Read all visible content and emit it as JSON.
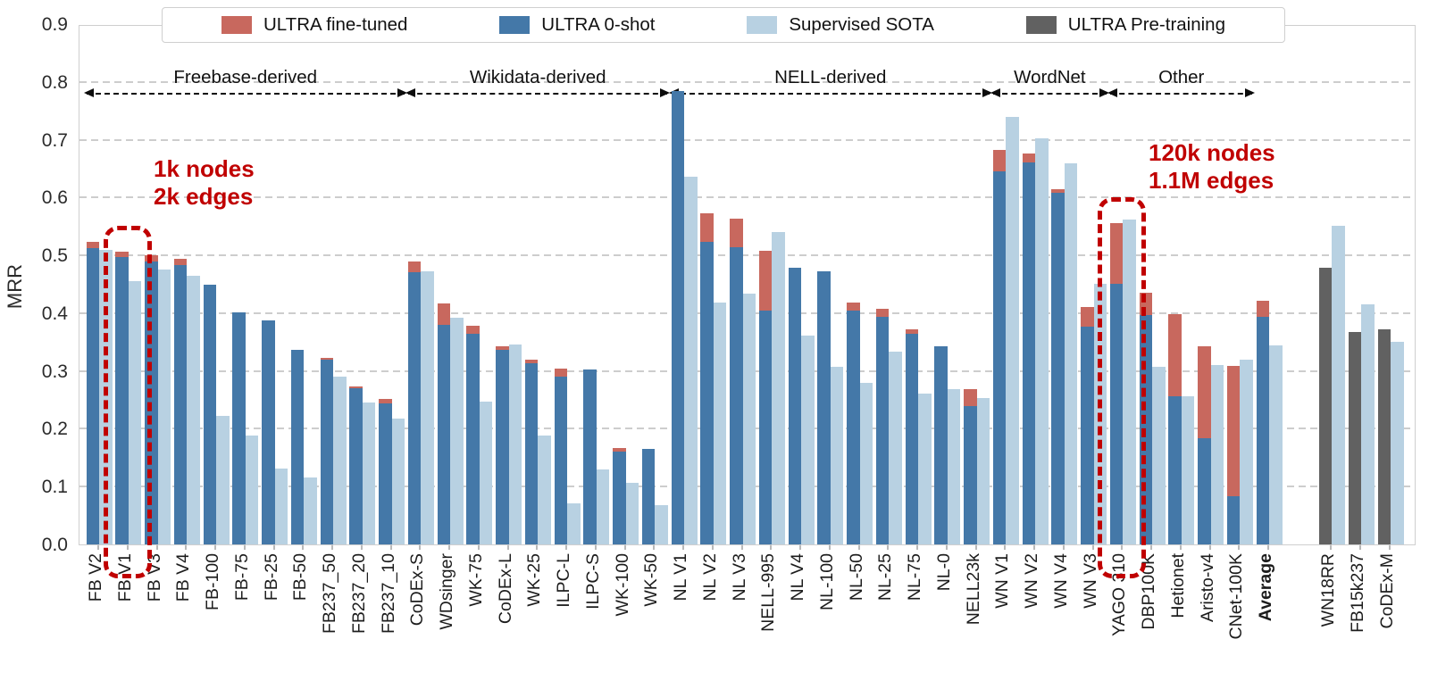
{
  "chart_data": {
    "type": "bar",
    "title": "",
    "ylabel": "MRR",
    "ylim": [
      0,
      0.9
    ],
    "yticks": [
      0.0,
      0.1,
      0.2,
      0.3,
      0.4,
      0.5,
      0.6,
      0.7,
      0.8,
      0.9
    ],
    "grid": "horizontal-dashed",
    "legend_position": "top-center",
    "legend": [
      {
        "label": "ULTRA fine-tuned",
        "color": "#c8685e"
      },
      {
        "label": "ULTRA 0-shot",
        "color": "#4478a8"
      },
      {
        "label": "Supervised SOTA",
        "color": "#b8d1e2"
      },
      {
        "label": "ULTRA Pre-training",
        "color": "#616161"
      }
    ],
    "groups": [
      {
        "label": "Freebase-derived",
        "start": 0,
        "end": 10
      },
      {
        "label": "Wikidata-derived",
        "start": 11,
        "end": 19
      },
      {
        "label": "NELL-derived",
        "start": 20,
        "end": 30
      },
      {
        "label": "WordNet",
        "start": 31,
        "end": 34
      },
      {
        "label": "Other",
        "start": 35,
        "end": 39
      }
    ],
    "datasets": [
      {
        "label": "FB V2",
        "zero_shot": 0.512,
        "fine_tuned": 0.523,
        "sota": 0.509
      },
      {
        "label": "FB V1",
        "zero_shot": 0.497,
        "fine_tuned": 0.506,
        "sota": 0.456
      },
      {
        "label": "FB V3",
        "zero_shot": 0.49,
        "fine_tuned": 0.5,
        "sota": 0.475
      },
      {
        "label": "FB V4",
        "zero_shot": 0.483,
        "fine_tuned": 0.494,
        "sota": 0.465
      },
      {
        "label": "FB-100",
        "zero_shot": 0.449,
        "fine_tuned": null,
        "sota": 0.222
      },
      {
        "label": "FB-75",
        "zero_shot": 0.401,
        "fine_tuned": null,
        "sota": 0.188
      },
      {
        "label": "FB-25",
        "zero_shot": 0.388,
        "fine_tuned": null,
        "sota": 0.132
      },
      {
        "label": "FB-50",
        "zero_shot": 0.337,
        "fine_tuned": null,
        "sota": 0.116
      },
      {
        "label": "FB237_50",
        "zero_shot": 0.32,
        "fine_tuned": 0.323,
        "sota": 0.291
      },
      {
        "label": "FB237_20",
        "zero_shot": 0.27,
        "fine_tuned": 0.273,
        "sota": 0.246
      },
      {
        "label": "FB237_10",
        "zero_shot": 0.244,
        "fine_tuned": 0.251,
        "sota": 0.218
      },
      {
        "label": "CoDEx-S",
        "zero_shot": 0.471,
        "fine_tuned": 0.49,
        "sota": 0.473
      },
      {
        "label": "WDsinger",
        "zero_shot": 0.38,
        "fine_tuned": 0.417,
        "sota": 0.392
      },
      {
        "label": "WK-75",
        "zero_shot": 0.364,
        "fine_tuned": 0.379,
        "sota": 0.247
      },
      {
        "label": "CoDEx-L",
        "zero_shot": 0.337,
        "fine_tuned": 0.343,
        "sota": 0.346
      },
      {
        "label": "WK-25",
        "zero_shot": 0.314,
        "fine_tuned": 0.32,
        "sota": 0.188
      },
      {
        "label": "ILPC-L",
        "zero_shot": 0.29,
        "fine_tuned": 0.304,
        "sota": 0.071
      },
      {
        "label": "ILPC-S",
        "zero_shot": 0.302,
        "fine_tuned": null,
        "sota": 0.129
      },
      {
        "label": "WK-100",
        "zero_shot": 0.161,
        "fine_tuned": 0.167,
        "sota": 0.106
      },
      {
        "label": "WK-50",
        "zero_shot": 0.165,
        "fine_tuned": null,
        "sota": 0.068
      },
      {
        "label": "NL V1",
        "zero_shot": 0.784,
        "fine_tuned": null,
        "sota": 0.636
      },
      {
        "label": "NL V2",
        "zero_shot": 0.524,
        "fine_tuned": 0.573,
        "sota": 0.418
      },
      {
        "label": "NL V3",
        "zero_shot": 0.514,
        "fine_tuned": 0.563,
        "sota": 0.434
      },
      {
        "label": "NELL-995",
        "zero_shot": 0.404,
        "fine_tuned": 0.508,
        "sota": 0.54
      },
      {
        "label": "NL V4",
        "zero_shot": 0.478,
        "fine_tuned": null,
        "sota": 0.362
      },
      {
        "label": "NL-100",
        "zero_shot": 0.473,
        "fine_tuned": null,
        "sota": 0.307
      },
      {
        "label": "NL-50",
        "zero_shot": 0.405,
        "fine_tuned": 0.418,
        "sota": 0.28
      },
      {
        "label": "NL-25",
        "zero_shot": 0.393,
        "fine_tuned": 0.407,
        "sota": 0.333
      },
      {
        "label": "NL-75",
        "zero_shot": 0.365,
        "fine_tuned": 0.372,
        "sota": 0.261
      },
      {
        "label": "NL-0",
        "zero_shot": 0.343,
        "fine_tuned": null,
        "sota": 0.269
      },
      {
        "label": "NELL23k",
        "zero_shot": 0.239,
        "fine_tuned": 0.268,
        "sota": 0.253
      },
      {
        "label": "WN V1",
        "zero_shot": 0.646,
        "fine_tuned": 0.683,
        "sota": 0.739
      },
      {
        "label": "WN V2",
        "zero_shot": 0.661,
        "fine_tuned": 0.676,
        "sota": 0.703
      },
      {
        "label": "WN V4",
        "zero_shot": 0.609,
        "fine_tuned": 0.614,
        "sota": 0.659
      },
      {
        "label": "WN V3",
        "zero_shot": 0.376,
        "fine_tuned": 0.411,
        "sota": 0.451
      },
      {
        "label": "YAGO 310",
        "zero_shot": 0.451,
        "fine_tuned": 0.555,
        "sota": 0.562
      },
      {
        "label": "DBP100K",
        "zero_shot": 0.397,
        "fine_tuned": 0.436,
        "sota": 0.307
      },
      {
        "label": "Hetionet",
        "zero_shot": 0.257,
        "fine_tuned": 0.399,
        "sota": 0.257
      },
      {
        "label": "Aristo-v4",
        "zero_shot": 0.183,
        "fine_tuned": 0.342,
        "sota": 0.311
      },
      {
        "label": "CNet-100K",
        "zero_shot": 0.083,
        "fine_tuned": 0.309,
        "sota": 0.319
      },
      {
        "label": "Average",
        "zero_shot": 0.394,
        "fine_tuned": 0.422,
        "sota": 0.345,
        "bold": true
      }
    ],
    "pretraining_datasets": [
      {
        "label": "WN18RR",
        "pretraining": 0.478,
        "sota": 0.551
      },
      {
        "label": "FB15k237",
        "pretraining": 0.367,
        "sota": 0.415
      },
      {
        "label": "CoDEx-M",
        "pretraining": 0.372,
        "sota": 0.351
      }
    ],
    "annotations": [
      {
        "line1": "1k nodes",
        "line2": "2k edges",
        "box_dataset": "FB V1"
      },
      {
        "line1": "120k nodes",
        "line2": "1.1M edges",
        "box_dataset": "YAGO 310"
      }
    ],
    "annotation_color": "#c00000"
  }
}
